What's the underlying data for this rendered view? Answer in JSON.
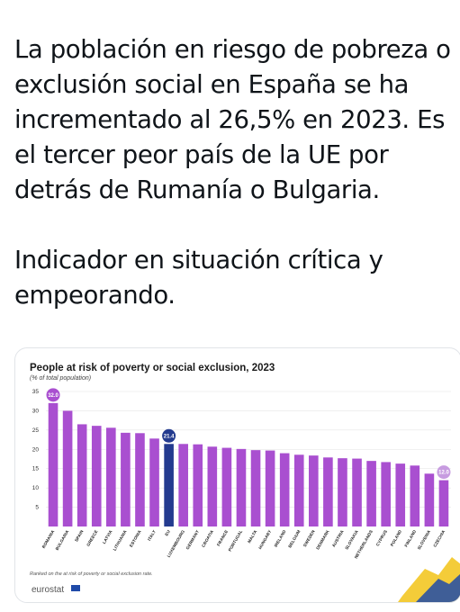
{
  "tweet": {
    "paragraph1": "La población en riesgo de pobreza o exclusión social en España se ha incrementado al 26,5% en 2023. Es el tercer peor país de la UE por detrás de Rumanía o Bulgaria.",
    "paragraph2": "Indicador en situación crítica y empeorando."
  },
  "source_brand": "eurostat",
  "colors": {
    "bar": "#a94fd0",
    "highlight": "#233b8f",
    "marker_low": "#c79be0"
  },
  "chart_data": {
    "type": "bar",
    "title": "People at risk of poverty or social exclusion, 2023",
    "subtitle": "(% of total population)",
    "footnote": "Ranked on the at risk of poverty or social exclusion rate.",
    "ylim": [
      0,
      35
    ],
    "yticks": [
      5,
      10,
      15,
      20,
      25,
      30,
      35
    ],
    "grid": true,
    "categories": [
      "ROMANIA",
      "BULGARIA",
      "SPAIN",
      "GREECE",
      "LATVIA",
      "LITHUANIA",
      "ESTONIA",
      "ITALY",
      "EU",
      "LUXEMBOURG",
      "GERMANY",
      "CROATIA",
      "FRANCE",
      "PORTUGAL",
      "MALTA",
      "HUNGARY",
      "IRELAND",
      "BELGIUM",
      "SWEDEN",
      "DENMARK",
      "AUSTRIA",
      "SLOVAKIA",
      "NETHERLANDS",
      "CYPRUS",
      "POLAND",
      "FINLAND",
      "SLOVENIA",
      "CZECHIA"
    ],
    "values": [
      32.0,
      30.0,
      26.5,
      26.1,
      25.6,
      24.3,
      24.2,
      22.8,
      21.4,
      21.4,
      21.3,
      20.7,
      20.4,
      20.1,
      19.8,
      19.7,
      19.0,
      18.6,
      18.4,
      17.9,
      17.7,
      17.6,
      17.0,
      16.7,
      16.3,
      15.8,
      13.7,
      12.0
    ],
    "highlight_index": 8,
    "data_labels": [
      {
        "index": 0,
        "text": "32.0"
      },
      {
        "index": 8,
        "text": "21.4"
      },
      {
        "index": 27,
        "text": "12.0"
      }
    ]
  }
}
